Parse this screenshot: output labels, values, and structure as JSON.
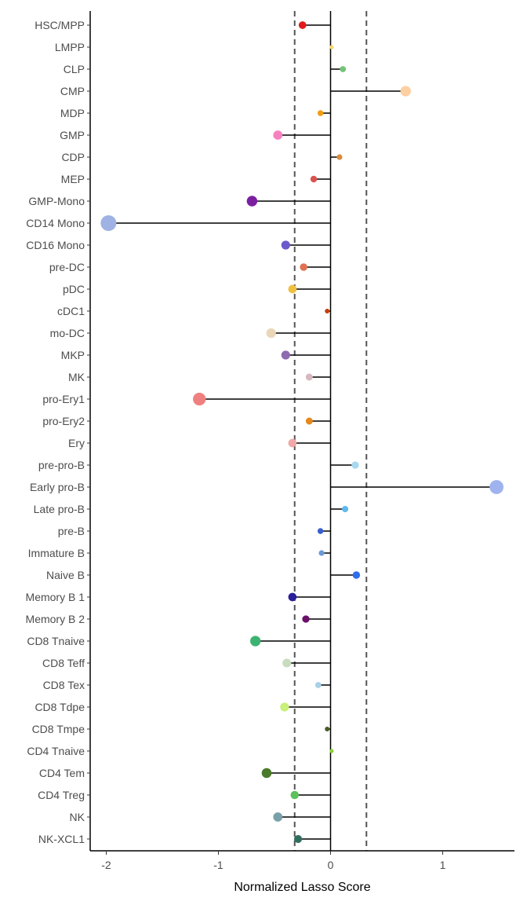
{
  "chart_data": {
    "type": "lollipop",
    "orientation": "horizontal",
    "xlabel": "Normalized Lasso Score",
    "ylabel": "",
    "xlim": [
      -2.15,
      1.6
    ],
    "xticks": [
      -2,
      -1,
      0,
      1
    ],
    "xtick_labels": [
      "-2",
      "-1",
      "0",
      "1"
    ],
    "reference_lines": {
      "solid": 0,
      "dashed": [
        -0.32,
        0.32
      ]
    },
    "grid": false,
    "legend": "none",
    "points": [
      {
        "label": "HSC/MPP",
        "value": -0.25,
        "color": "#e31a1c"
      },
      {
        "label": "LMPP",
        "value": 0.01,
        "color": "#f5d76e"
      },
      {
        "label": "CLP",
        "value": 0.11,
        "color": "#74c476"
      },
      {
        "label": "CMP",
        "value": 0.67,
        "color": "#fdd0a2"
      },
      {
        "label": "MDP",
        "value": -0.09,
        "color": "#f39c12"
      },
      {
        "label": "GMP",
        "value": -0.47,
        "color": "#f781bf"
      },
      {
        "label": "CDP",
        "value": 0.08,
        "color": "#d98c3a"
      },
      {
        "label": "MEP",
        "value": -0.15,
        "color": "#d9534f"
      },
      {
        "label": "GMP-Mono",
        "value": -0.7,
        "color": "#7b1fa2"
      },
      {
        "label": "CD14 Mono",
        "value": -1.98,
        "color": "#9fb2e3"
      },
      {
        "label": "CD16 Mono",
        "value": -0.4,
        "color": "#6a5acd"
      },
      {
        "label": "pre-DC",
        "value": -0.24,
        "color": "#e07050"
      },
      {
        "label": "pDC",
        "value": -0.34,
        "color": "#f0c040"
      },
      {
        "label": "cDC1",
        "value": -0.03,
        "color": "#c0400c"
      },
      {
        "label": "mo-DC",
        "value": -0.53,
        "color": "#ead7b8"
      },
      {
        "label": "MKP",
        "value": -0.4,
        "color": "#8e6bb0"
      },
      {
        "label": "MK",
        "value": -0.19,
        "color": "#d8b8c0"
      },
      {
        "label": "pro-Ery1",
        "value": -1.17,
        "color": "#f08080"
      },
      {
        "label": "pro-Ery2",
        "value": -0.19,
        "color": "#e58a1a"
      },
      {
        "label": "Ery",
        "value": -0.34,
        "color": "#f0a8a8"
      },
      {
        "label": "pre-pro-B",
        "value": 0.22,
        "color": "#a8d8f0"
      },
      {
        "label": "Early pro-B",
        "value": 1.48,
        "color": "#9fb4ee"
      },
      {
        "label": "Late pro-B",
        "value": 0.13,
        "color": "#5fb8f0"
      },
      {
        "label": "pre-B",
        "value": -0.09,
        "color": "#3a5fcd"
      },
      {
        "label": "Immature B",
        "value": -0.08,
        "color": "#6a9ad8"
      },
      {
        "label": "Naive B",
        "value": 0.23,
        "color": "#2f6df0"
      },
      {
        "label": "Memory B 1",
        "value": -0.34,
        "color": "#2a1f99"
      },
      {
        "label": "Memory B 2",
        "value": -0.22,
        "color": "#6a0f6a"
      },
      {
        "label": "CD8 Tnaive",
        "value": -0.67,
        "color": "#3cb371"
      },
      {
        "label": "CD8 Teff",
        "value": -0.39,
        "color": "#c8dcc0"
      },
      {
        "label": "CD8 Tex",
        "value": -0.11,
        "color": "#a8d0e8"
      },
      {
        "label": "CD8 Tdpe",
        "value": -0.41,
        "color": "#c8f07a"
      },
      {
        "label": "CD8 Tmpe",
        "value": -0.03,
        "color": "#4a5a2a"
      },
      {
        "label": "CD4 Tnaive",
        "value": 0.01,
        "color": "#8bd03a"
      },
      {
        "label": "CD4 Tem",
        "value": -0.57,
        "color": "#4a7a2a"
      },
      {
        "label": "CD4 Treg",
        "value": -0.32,
        "color": "#5cc05c"
      },
      {
        "label": "NK",
        "value": -0.47,
        "color": "#78a0a8"
      },
      {
        "label": "NK-XCL1",
        "value": -0.29,
        "color": "#2f6f5f"
      }
    ]
  }
}
